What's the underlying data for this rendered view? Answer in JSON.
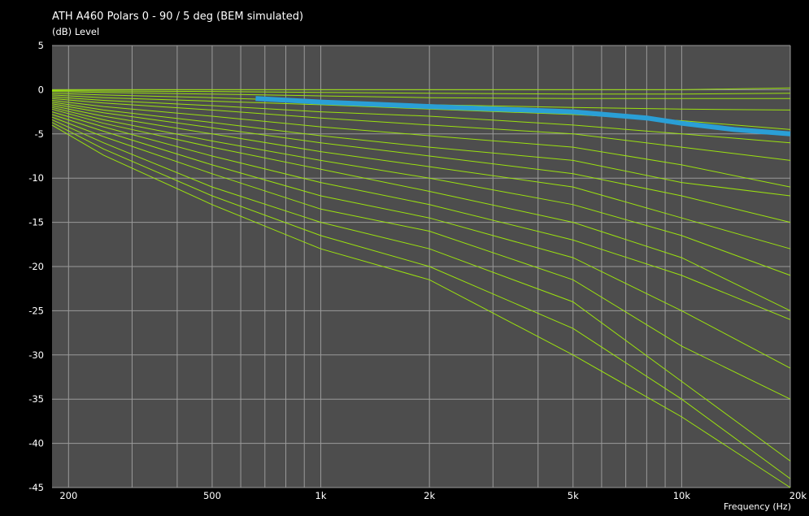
{
  "chart_data": {
    "type": "line",
    "title": "ATH A460 Polars 0 - 90 / 5 deg (BEM simulated)",
    "ylabel": "(dB)  Level",
    "xlabel": "Frequency  (Hz)",
    "xscale": "log",
    "xlim": [
      180,
      20000
    ],
    "ylim": [
      -45,
      5
    ],
    "grid": true,
    "x_ticks": [
      {
        "value": 200,
        "label": "200"
      },
      {
        "value": 500,
        "label": "500"
      },
      {
        "value": 1000,
        "label": "1k"
      },
      {
        "value": 2000,
        "label": "2k"
      },
      {
        "value": 5000,
        "label": "5k"
      },
      {
        "value": 10000,
        "label": "10k"
      },
      {
        "value": 20000,
        "label": "20k"
      }
    ],
    "y_ticks": [
      5,
      0,
      -5,
      -10,
      -15,
      -20,
      -25,
      -30,
      -35,
      -40,
      -45
    ],
    "colors": {
      "background": "#4d4d4d",
      "grid": "#9a9a9a",
      "polar": "#9be10f",
      "highlight": "#2a9fd6",
      "text": "#ffffff"
    },
    "series": [
      {
        "x": [
          180,
          250,
          500,
          1000,
          2000,
          5000,
          10000,
          20000
        ],
        "y": [
          0,
          0,
          0,
          0,
          0,
          0,
          0,
          0.2
        ]
      },
      {
        "x": [
          180,
          250,
          500,
          1000,
          2000,
          5000,
          10000,
          20000
        ],
        "y": [
          -0.1,
          -0.15,
          -0.2,
          -0.3,
          -0.4,
          -0.5,
          -0.5,
          -0.4
        ]
      },
      {
        "x": [
          180,
          250,
          500,
          1000,
          2000,
          5000,
          10000,
          20000
        ],
        "y": [
          -0.2,
          -0.3,
          -0.5,
          -0.7,
          -0.9,
          -1,
          -1,
          -1
        ]
      },
      {
        "x": [
          180,
          250,
          500,
          1000,
          2000,
          5000,
          10000,
          20000
        ],
        "y": [
          -0.4,
          -0.6,
          -0.9,
          -1.3,
          -1.7,
          -2,
          -2.2,
          -2.3
        ]
      },
      {
        "x": [
          180,
          250,
          500,
          1000,
          2000,
          5000,
          10000,
          20000
        ],
        "y": [
          -0.6,
          -0.9,
          -1.3,
          -1.7,
          -2.2,
          -2.8,
          -3.5,
          -4.5
        ]
      },
      {
        "x": [
          180,
          250,
          500,
          1000,
          2000,
          5000,
          10000,
          20000
        ],
        "y": [
          -0.8,
          -1.2,
          -1.8,
          -2.5,
          -3,
          -4,
          -5,
          -6
        ]
      },
      {
        "x": [
          180,
          250,
          500,
          1000,
          2000,
          5000,
          10000,
          20000
        ],
        "y": [
          -1,
          -1.5,
          -2.3,
          -3.2,
          -4,
          -5,
          -6.5,
          -8
        ]
      },
      {
        "x": [
          180,
          250,
          500,
          1000,
          2000,
          5000,
          10000,
          20000
        ],
        "y": [
          -1.2,
          -1.9,
          -3,
          -4.2,
          -5.2,
          -6.5,
          -8.5,
          -11
        ]
      },
      {
        "x": [
          180,
          250,
          500,
          1000,
          2000,
          5000,
          10000,
          20000
        ],
        "y": [
          -1.4,
          -2.3,
          -3.7,
          -5.2,
          -6.5,
          -8,
          -10.5,
          -12
        ]
      },
      {
        "x": [
          180,
          250,
          500,
          1000,
          2000,
          5000,
          10000,
          20000
        ],
        "y": [
          -1.6,
          -2.6,
          -4.3,
          -6,
          -7.5,
          -9.5,
          -12,
          -15
        ]
      },
      {
        "x": [
          180,
          250,
          500,
          1000,
          2000,
          5000,
          10000,
          20000
        ],
        "y": [
          -1.8,
          -3,
          -5,
          -7,
          -8.7,
          -11,
          -14.5,
          -18
        ]
      },
      {
        "x": [
          180,
          250,
          500,
          1000,
          2000,
          5000,
          10000,
          20000
        ],
        "y": [
          -2,
          -3.4,
          -5.8,
          -8,
          -10,
          -13,
          -16.5,
          -21
        ]
      },
      {
        "x": [
          180,
          250,
          500,
          1000,
          2000,
          5000,
          10000,
          20000
        ],
        "y": [
          -2.2,
          -3.8,
          -6.5,
          -9,
          -11.5,
          -15,
          -19,
          -25
        ]
      },
      {
        "x": [
          180,
          250,
          500,
          1000,
          2000,
          5000,
          10000,
          20000
        ],
        "y": [
          -2.5,
          -4.2,
          -7.5,
          -10.5,
          -13,
          -17,
          -21,
          -26
        ]
      },
      {
        "x": [
          180,
          250,
          500,
          1000,
          2000,
          5000,
          10000,
          20000
        ],
        "y": [
          -2.8,
          -4.7,
          -8.5,
          -12,
          -14.5,
          -19,
          -25,
          -31.5
        ]
      },
      {
        "x": [
          180,
          250,
          500,
          1000,
          2000,
          5000,
          10000,
          20000
        ],
        "y": [
          -3.1,
          -5.3,
          -9.5,
          -13.5,
          -16,
          -21.5,
          -29,
          -35
        ]
      },
      {
        "x": [
          180,
          250,
          500,
          1000,
          2000,
          5000,
          10000,
          20000
        ],
        "y": [
          -3.4,
          -6,
          -11,
          -15,
          -18,
          -24,
          -33,
          -42
        ]
      },
      {
        "x": [
          180,
          250,
          500,
          1000,
          2000,
          5000,
          10000,
          20000
        ],
        "y": [
          -3.7,
          -6.7,
          -12,
          -16.5,
          -20,
          -27,
          -35,
          -44
        ]
      },
      {
        "x": [
          180,
          250,
          500,
          1000,
          2000,
          5000,
          10000,
          20000
        ],
        "y": [
          -4,
          -7.4,
          -13,
          -18,
          -21.5,
          -30,
          -37,
          -45
        ]
      }
    ],
    "highlight_series": {
      "x": [
        660,
        1000,
        2000,
        5000,
        8000,
        10000,
        14000,
        20000
      ],
      "y": [
        -1,
        -1.4,
        -1.9,
        -2.5,
        -3.2,
        -3.8,
        -4.5,
        -5
      ]
    }
  }
}
